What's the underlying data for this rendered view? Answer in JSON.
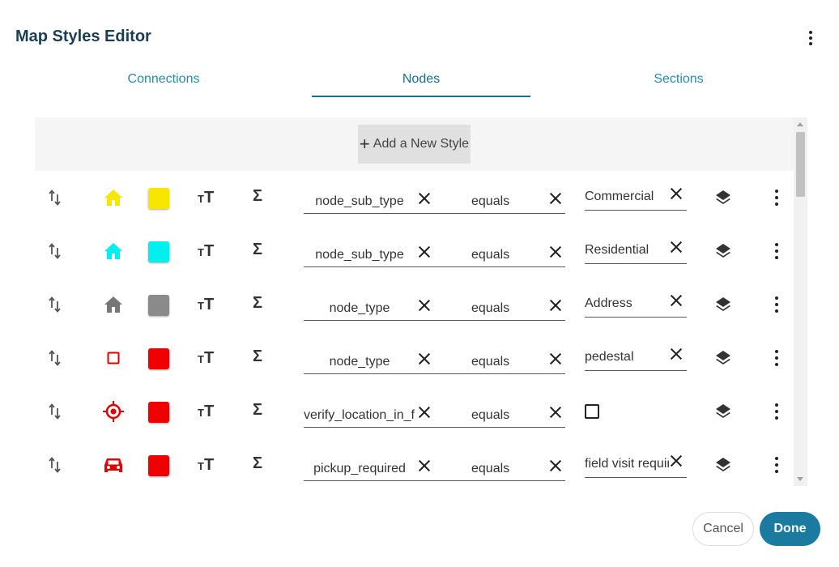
{
  "dialog": {
    "title": "Map Styles Editor"
  },
  "tabs": [
    {
      "label": "Connections",
      "active": false
    },
    {
      "label": "Nodes",
      "active": true
    },
    {
      "label": "Sections",
      "active": false
    }
  ],
  "add_button": {
    "label": "Add a New Style"
  },
  "rows": [
    {
      "icon": "home-icon",
      "icon_color": "#f7e600",
      "swatch": "#f7e600",
      "field": "node_sub_type",
      "operator": "equals",
      "value": "Commercial"
    },
    {
      "icon": "home-icon",
      "icon_color": "#00f0f0",
      "swatch": "#00f0f0",
      "field": "node_sub_type",
      "operator": "equals",
      "value": "Residential"
    },
    {
      "icon": "home-icon",
      "icon_color": "#777777",
      "swatch": "#8a8a8a",
      "field": "node_type",
      "operator": "equals",
      "value": "Address"
    },
    {
      "icon": "square-outline-icon",
      "icon_color": "#e00000",
      "swatch": "#f00000",
      "field": "node_type",
      "operator": "equals",
      "value": "pedestal"
    },
    {
      "icon": "crosshair-icon",
      "icon_color": "#e00000",
      "swatch": "#f00000",
      "field": "verify_location_in_field",
      "operator": "equals",
      "value_type": "checkbox",
      "checked": false
    },
    {
      "icon": "car-icon",
      "icon_color": "#e00000",
      "swatch": "#f00000",
      "field": "pickup_required",
      "operator": "equals",
      "value": "field visit required"
    }
  ],
  "footer": {
    "cancel_label": "Cancel",
    "done_label": "Done"
  },
  "colors": {
    "accent": "#1a7aa0",
    "title": "#1c3d52",
    "tab_text": "#2a8aa6"
  }
}
